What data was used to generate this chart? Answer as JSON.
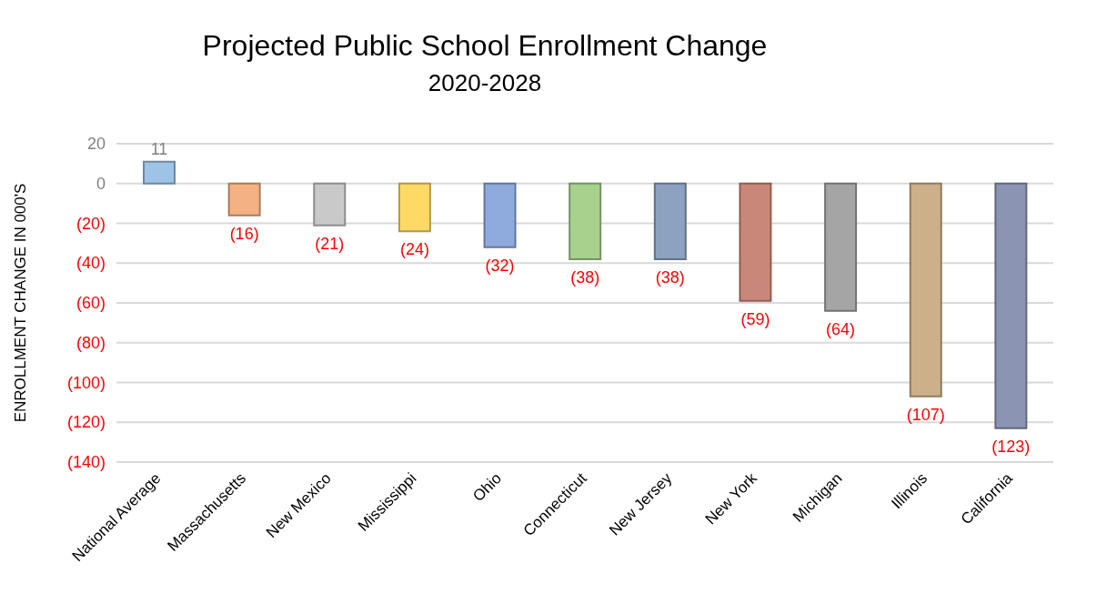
{
  "chart_data": {
    "type": "bar",
    "title": "Projected Public School Enrollment Change",
    "subtitle": "2020-2028",
    "ylabel": "ENROLLMENT CHANGE IN 000'S",
    "categories": [
      "National Average",
      "Massachusetts",
      "New Mexico",
      "Mississippi",
      "Ohio",
      "Connecticut",
      "New Jersey",
      "New York",
      "Michigan",
      "Illinois",
      "California"
    ],
    "values": [
      11,
      -16,
      -21,
      -24,
      -32,
      -38,
      -38,
      -59,
      -64,
      -107,
      -123
    ],
    "value_labels": [
      "11",
      "(16)",
      "(21)",
      "(24)",
      "(32)",
      "(38)",
      "(38)",
      "(59)",
      "(64)",
      "(107)",
      "(123)"
    ],
    "colors": [
      "#9dc3e6",
      "#f4b183",
      "#c9c9c9",
      "#ffd966",
      "#8faadc",
      "#a9d18e",
      "#8da2c0",
      "#c9877a",
      "#a5a5a5",
      "#cbb08a",
      "#8b95b3"
    ],
    "ylim": [
      -140,
      20
    ],
    "yticks": [
      20,
      0,
      {
        "value": -20,
        "label": "(20)"
      },
      {
        "value": -40,
        "label": "(40)"
      },
      {
        "value": -60,
        "label": "(60)"
      },
      {
        "value": -80,
        "label": "(80)"
      },
      {
        "value": -100,
        "label": "(100)"
      },
      {
        "value": -120,
        "label": "(120)"
      },
      {
        "value": -140,
        "label": "(140)"
      }
    ],
    "grid": "y",
    "legend": false
  }
}
